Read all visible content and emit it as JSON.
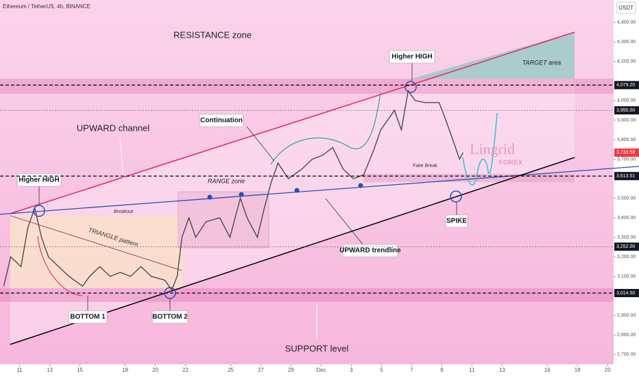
{
  "header": {
    "symbol": "Ethereum / TetherUS, 4h, BINANCE",
    "currency": "USDT"
  },
  "chart_data": {
    "type": "line",
    "x": [
      -1.05,
      -0.59,
      0.09,
      0.55,
      1.0,
      1.45,
      1.91,
      2.59,
      3.27,
      4.18,
      4.64,
      5.32,
      6.0,
      6.68,
      7.36,
      8.05,
      8.73,
      9.64,
      10.09,
      10.45,
      10.77,
      11.23,
      11.68,
      12.36,
      13.27,
      13.95,
      14.64,
      15.09,
      15.77,
      16.23,
      16.68,
      17.14,
      17.82,
      18.73,
      19.41,
      20.09,
      20.77,
      21.45,
      22.14,
      22.82,
      23.5,
      23.95,
      24.41,
      24.86,
      25.32,
      25.77,
      26.23,
      26.91,
      27.82,
      28.27,
      28.73,
      29.18,
      29.41
    ],
    "series": [
      {
        "color": "#4a4a4a",
        "values": [
          3050,
          3200,
          3150,
          3350,
          3450,
          3300,
          3200,
          3150,
          3100,
          3050,
          3100,
          3150,
          3100,
          3120,
          3100,
          3150,
          3100,
          3080,
          3030,
          3100,
          3300,
          3400,
          3300,
          3380,
          3400,
          3300,
          3500,
          3400,
          3300,
          3450,
          3580,
          3680,
          3600,
          3650,
          3700,
          3720,
          3760,
          3650,
          3600,
          3620,
          3750,
          3850,
          3900,
          3950,
          3850,
          4050,
          4000,
          3990,
          3990,
          3900,
          3800,
          3700,
          3733.58
        ]
      }
    ],
    "xlim": [
      -1.3,
      39.4
    ],
    "ylim": [
      2650,
      4515
    ],
    "xticks": [
      {
        "value": 0,
        "label": "11"
      },
      {
        "value": 2,
        "label": "13"
      },
      {
        "value": 4,
        "label": "15"
      },
      {
        "value": 7,
        "label": "18"
      },
      {
        "value": 9,
        "label": "20"
      },
      {
        "value": 11,
        "label": "22"
      },
      {
        "value": 14,
        "label": "25"
      },
      {
        "value": 16,
        "label": "27"
      },
      {
        "value": 18,
        "label": "29"
      },
      {
        "value": 20,
        "label": "Dec"
      },
      {
        "value": 22,
        "label": "3"
      },
      {
        "value": 24,
        "label": "5"
      },
      {
        "value": 26,
        "label": "7"
      },
      {
        "value": 28,
        "label": "9"
      },
      {
        "value": 30,
        "label": "11"
      },
      {
        "value": 32,
        "label": "13"
      },
      {
        "value": 35,
        "label": "16"
      },
      {
        "value": 37,
        "label": "18"
      },
      {
        "value": 39,
        "label": "20"
      }
    ],
    "yticks": [
      {
        "value": 2700,
        "label": "2,700.00"
      },
      {
        "value": 2800,
        "label": "2,800.00"
      },
      {
        "value": 2900,
        "label": "2,900.00"
      },
      {
        "value": 3100,
        "label": "3,100.00"
      },
      {
        "value": 3200,
        "label": "3,200.00"
      },
      {
        "value": 3300,
        "label": "3,300.00"
      },
      {
        "value": 3400,
        "label": "3,400.00"
      },
      {
        "value": 3500,
        "label": "3,500.00"
      },
      {
        "value": 3700,
        "label": "3,700.00"
      },
      {
        "value": 3800,
        "label": "3,800.00"
      },
      {
        "value": 3900,
        "label": "3,900.00"
      },
      {
        "value": 4000,
        "label": "4,000.00"
      },
      {
        "value": 4200,
        "label": "4,200.00"
      },
      {
        "value": 4300,
        "label": "4,300.00"
      },
      {
        "value": 4400,
        "label": "4,400.00"
      }
    ],
    "price_levels": [
      {
        "value": 4079.2,
        "label": "4,079.20",
        "color": "#131722",
        "style": "bold"
      },
      {
        "value": 3950,
        "label": "3,950.00",
        "color": "#131722",
        "style": "thin"
      },
      {
        "value": 3733.58,
        "label": "3,733.58",
        "color": "#f23645",
        "style": "none"
      },
      {
        "value": 3613.51,
        "label": "3,613.51",
        "color": "#131722",
        "style": "bold"
      },
      {
        "value": 3252,
        "label": "3,252.00",
        "color": "#131722",
        "style": "thin"
      },
      {
        "value": 3014.5,
        "label": "3,014.50",
        "color": "#131722",
        "style": "bold"
      }
    ],
    "annotations": [
      "RESISTANCE zone",
      "Higher HIGH",
      "TARGET area",
      "Continuation",
      "UPWARD channel",
      "Higher HIGH",
      "RANGE zone",
      "Breakout",
      "TRIANGLE pattern",
      "Fake Break",
      "UPWARD trendline",
      "SPIKE",
      "BOTTOM  1",
      "BOTTOM 2",
      "SUPPORT level",
      "Lingrid",
      "FOREX"
    ]
  }
}
